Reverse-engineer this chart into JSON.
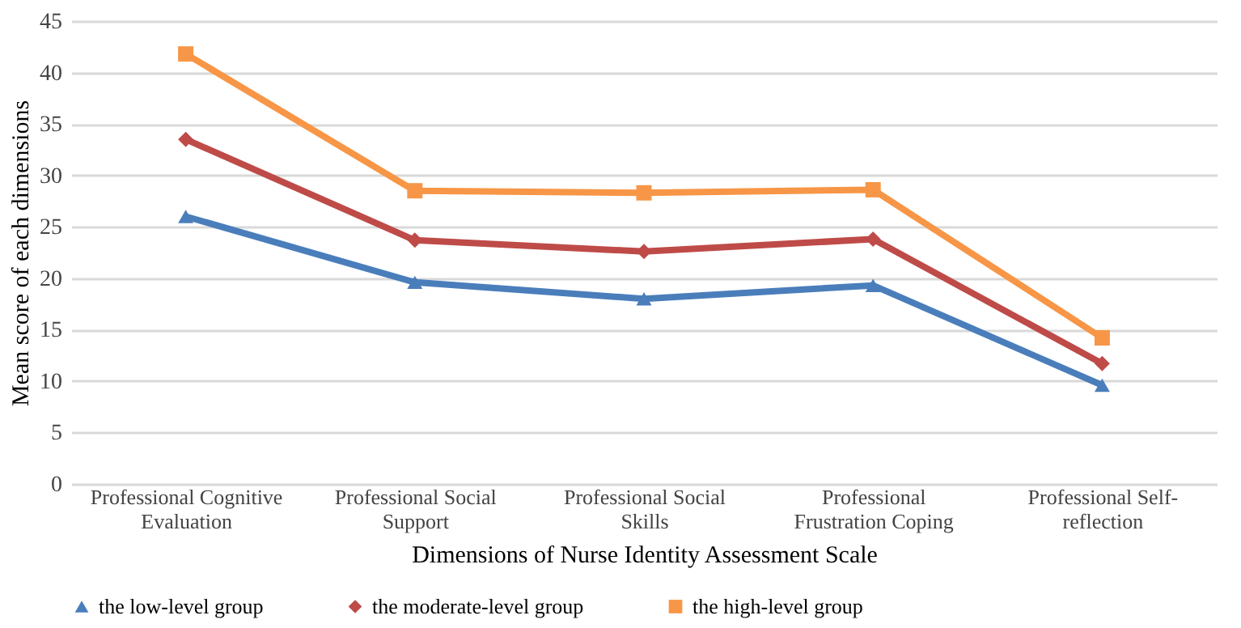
{
  "chart_data": {
    "type": "line",
    "xlabel": "Dimensions of Nurse Identity Assessment Scale",
    "ylabel": "Mean score of each dimensions",
    "categories": [
      "Professional Cognitive Evaluation",
      "Professional Social Support",
      "Professional Social Skills",
      "Professional Frustration Coping",
      "Professional Self-reflection"
    ],
    "series": [
      {
        "name": "the low-level group",
        "color": "#4a7ebb",
        "marker": "triangle",
        "values": [
          26.0,
          19.6,
          18.0,
          19.3,
          9.6
        ]
      },
      {
        "name": "the moderate-level group",
        "color": "#be4b48",
        "marker": "diamond",
        "values": [
          33.5,
          23.7,
          22.6,
          23.8,
          11.7
        ]
      },
      {
        "name": "the high-level group",
        "color": "#f79646",
        "marker": "square",
        "values": [
          41.8,
          28.5,
          28.3,
          28.6,
          14.2
        ]
      }
    ],
    "ylim": [
      0,
      45
    ],
    "yticks": [
      0,
      5,
      10,
      15,
      20,
      25,
      30,
      35,
      40,
      45
    ],
    "grid": "y",
    "legend": "bottom",
    "line_style": "solid"
  }
}
